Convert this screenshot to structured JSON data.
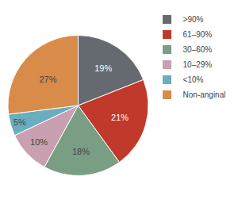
{
  "chart_data": {
    "type": "pie",
    "categories": [
      ">90%",
      "61–90%",
      "30–60%",
      "10–29%",
      "<10%",
      "Non-anginal"
    ],
    "values": [
      19,
      21,
      18,
      10,
      5,
      27
    ],
    "value_labels": [
      "19%",
      "21%",
      "18%",
      "10%",
      "5%",
      "27%"
    ],
    "colors": [
      "#656970",
      "#c0392b",
      "#7a9e84",
      "#c9a0b0",
      "#6aadbe",
      "#d98b4a"
    ],
    "data_labels": true,
    "legend": "upper right"
  }
}
